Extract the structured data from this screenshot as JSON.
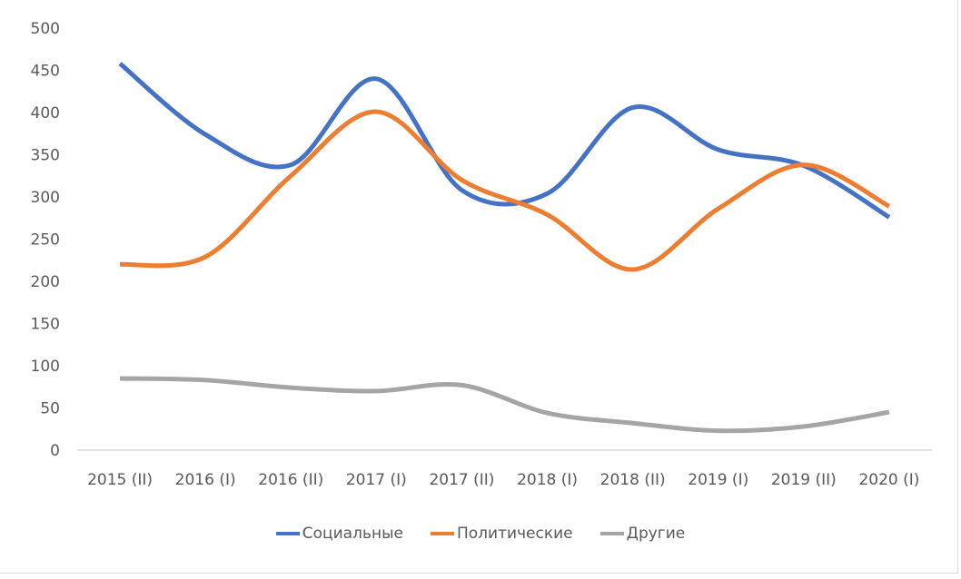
{
  "chart_data": {
    "type": "line",
    "smoothed": true,
    "title": "",
    "xlabel": "",
    "ylabel": "",
    "ylim": [
      0,
      500
    ],
    "yticks": [
      0,
      50,
      100,
      150,
      200,
      250,
      300,
      350,
      400,
      450,
      500
    ],
    "grid": false,
    "legend_position": "bottom",
    "categories": [
      "2015 (II)",
      "2016 (I)",
      "2016 (II)",
      "2017 (I)",
      "2017 (II)",
      "2018 (I)",
      "2018 (II)",
      "2019 (I)",
      "2019 (II)",
      "2020 (I)"
    ],
    "series": [
      {
        "name": "Социальные",
        "color": "#4472c4",
        "values": [
          458,
          374,
          338,
          440,
          308,
          304,
          406,
          356,
          337,
          276
        ]
      },
      {
        "name": "Политические",
        "color": "#ed7d31",
        "values": [
          220,
          229,
          325,
          401,
          320,
          279,
          214,
          286,
          338,
          289
        ]
      },
      {
        "name": "Другие",
        "color": "#a5a5a5",
        "values": [
          85,
          83,
          74,
          70,
          77,
          44,
          32,
          23,
          28,
          45
        ]
      }
    ]
  },
  "legend": {
    "items": [
      {
        "label": "Социальные",
        "color": "#4472c4"
      },
      {
        "label": "Политические",
        "color": "#ed7d31"
      },
      {
        "label": "Другие",
        "color": "#a5a5a5"
      }
    ]
  }
}
